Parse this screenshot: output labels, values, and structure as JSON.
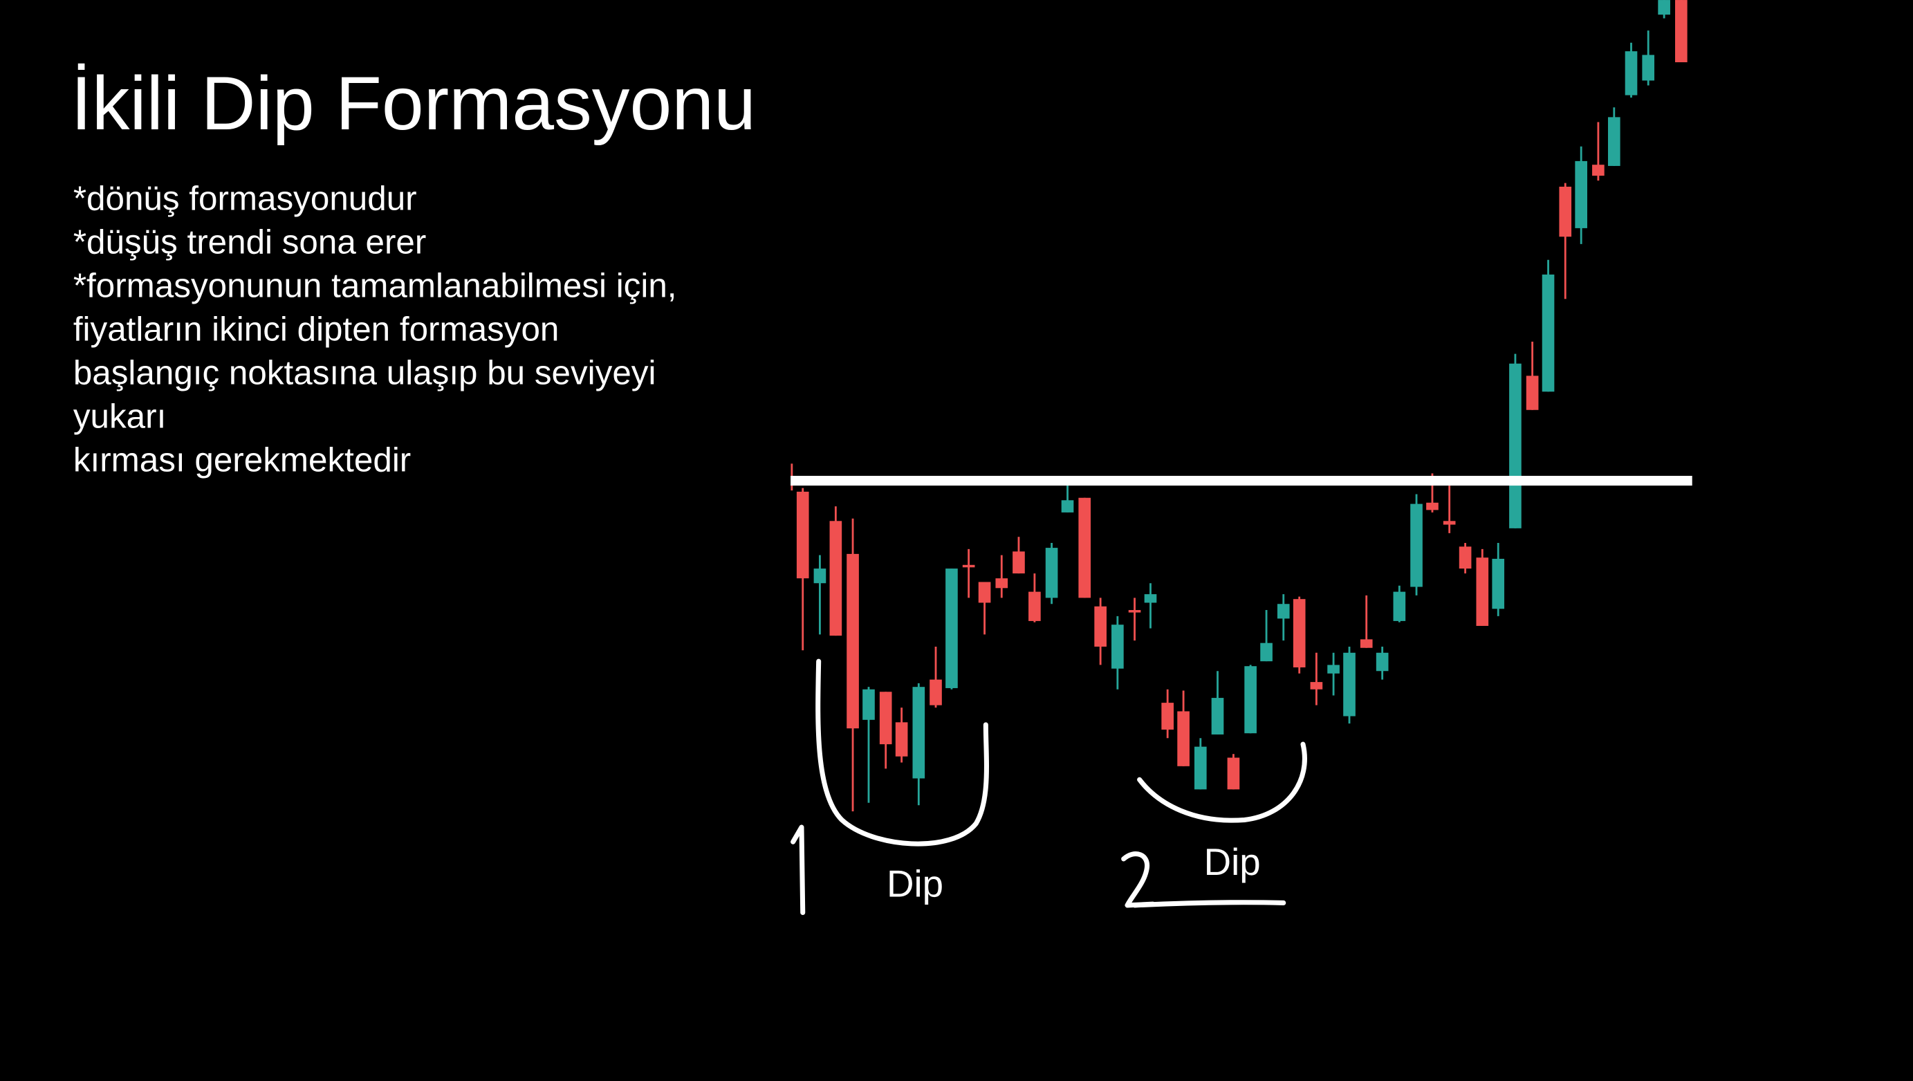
{
  "header": {
    "title": "İkili Dip Formasyonu"
  },
  "body": {
    "lines": [
      "*dönüş formasyonudur",
      "*düşüş trendi sona erer",
      "*formasyonunun tamamlanabilmesi için,",
      "fiyatların ikinci dipten formasyon",
      "başlangıç noktasına ulaşıp bu seviyeyi",
      "yukarı",
      "kırması gerekmektedir"
    ]
  },
  "annotations": {
    "dip1": "Dip",
    "dip2": "Dip"
  }
}
